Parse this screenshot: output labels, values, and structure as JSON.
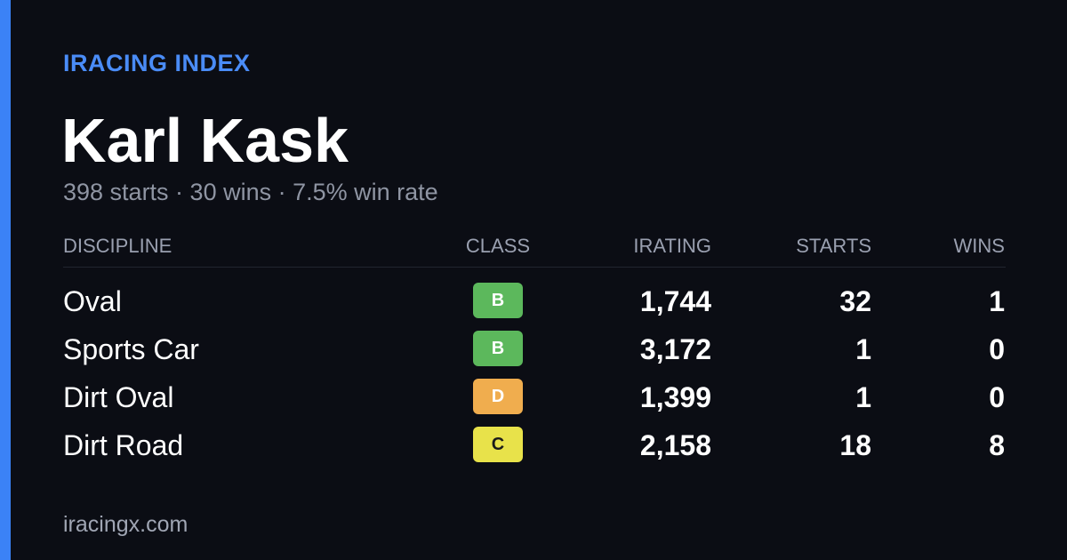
{
  "brand": "IRACING INDEX",
  "driver": {
    "name": "Karl Kask",
    "summary": "398 starts · 30 wins · 7.5% win rate"
  },
  "table": {
    "headers": [
      "DISCIPLINE",
      "CLASS",
      "IRATING",
      "STARTS",
      "WINS"
    ],
    "rows": [
      [
        "Oval",
        "B",
        "1,744",
        "32",
        "1"
      ],
      [
        "Sports Car",
        "B",
        "3,172",
        "1",
        "0"
      ],
      [
        "Dirt Oval",
        "D",
        "1,399",
        "1",
        "0"
      ],
      [
        "Dirt Road",
        "C",
        "2,158",
        "18",
        "8"
      ]
    ]
  },
  "footer": "iracingx.com"
}
